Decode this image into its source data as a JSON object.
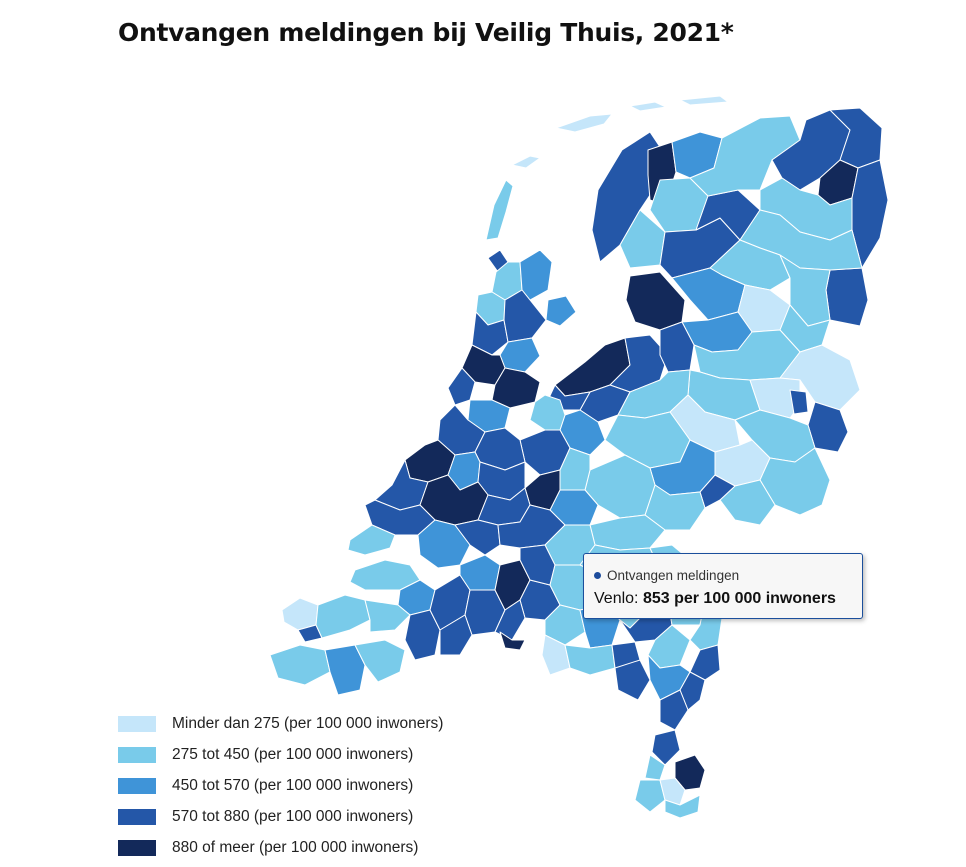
{
  "title": "Ontvangen meldingen bij Veilig Thuis, 2021*",
  "colors": {
    "c1": "#c5e6fa",
    "c2": "#79cbea",
    "c3": "#3f94d8",
    "c4": "#2457a8",
    "c5": "#13295a",
    "border": "#ffffff"
  },
  "legend": [
    {
      "label": "Minder dan 275 (per 100 000 inwoners)",
      "color": "#c5e6fa"
    },
    {
      "label": "275 tot 450 (per 100 000 inwoners)",
      "color": "#79cbea"
    },
    {
      "label": "450 tot 570 (per 100 000 inwoners)",
      "color": "#3f94d8"
    },
    {
      "label": "570 tot 880 (per 100 000 inwoners)",
      "color": "#2457a8"
    },
    {
      "label": "880 of meer (per 100 000 inwoners)",
      "color": "#13295a"
    }
  ],
  "tooltip": {
    "series": "Ontvangen meldingen",
    "place": "Venlo:",
    "value": "853 per 100 000 inwoners"
  }
}
